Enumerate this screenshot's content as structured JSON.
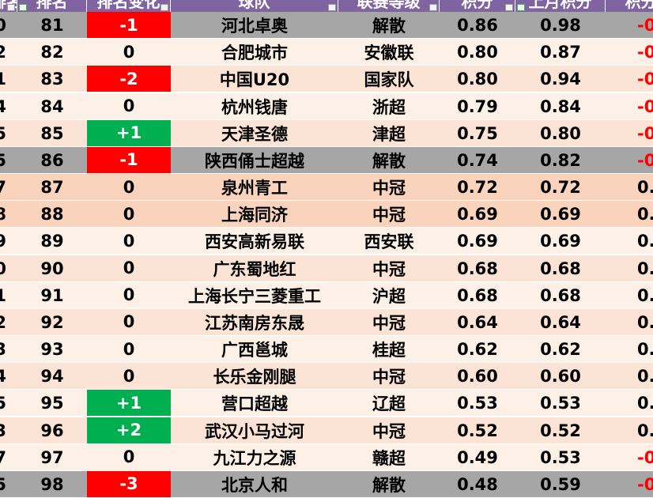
{
  "table": {
    "header": [
      "排名",
      "排名",
      "排名变化",
      "球队",
      "联赛等级",
      "积分",
      "上月积分",
      "积分"
    ],
    "rows": [
      [
        "0",
        "81",
        "-1",
        "河北卓奥",
        "解散",
        "0.86",
        "0.98",
        "-0"
      ],
      [
        "2",
        "82",
        "0",
        "合肥城市",
        "安徽联",
        "0.80",
        "0.87",
        "-0"
      ],
      [
        "1",
        "83",
        "-2",
        "中国U20",
        "国家队",
        "0.80",
        "0.94",
        "-0"
      ],
      [
        "4",
        "84",
        "0",
        "杭州钱唐",
        "浙超",
        "0.79",
        "0.84",
        "-0"
      ],
      [
        "5",
        "85",
        "+1",
        "天津圣德",
        "津超",
        "0.75",
        "0.80",
        "-0"
      ],
      [
        "5",
        "86",
        "-1",
        "陕西俑士超越",
        "解散",
        "0.74",
        "0.82",
        "-0"
      ],
      [
        "7",
        "87",
        "0",
        "泉州青工",
        "中冠",
        "0.72",
        "0.72",
        "0."
      ],
      [
        "8",
        "88",
        "0",
        "上海同济",
        "中冠",
        "0.69",
        "0.69",
        "0."
      ],
      [
        "9",
        "89",
        "0",
        "西安高新易联",
        "西安联",
        "0.69",
        "0.69",
        "0."
      ],
      [
        "0",
        "90",
        "0",
        "广东蜀地红",
        "中冠",
        "0.68",
        "0.68",
        "0."
      ],
      [
        "1",
        "91",
        "0",
        "上海长宁三菱重工",
        "沪超",
        "0.68",
        "0.68",
        "0."
      ],
      [
        "2",
        "92",
        "0",
        "江苏南房东晟",
        "中冠",
        "0.64",
        "0.64",
        "0."
      ],
      [
        "3",
        "93",
        "0",
        "广西邕城",
        "桂超",
        "0.62",
        "0.62",
        "0."
      ],
      [
        "4",
        "94",
        "0",
        "长乐金刚腿",
        "中冠",
        "0.60",
        "0.60",
        "0."
      ],
      [
        "5",
        "95",
        "+1",
        "营口超越",
        "辽超",
        "0.53",
        "0.53",
        "0."
      ],
      [
        "3",
        "96",
        "+2",
        "武汉小马过河",
        "中冠",
        "0.52",
        "0.52",
        "0."
      ],
      [
        "7",
        "97",
        "0",
        "九江力之源",
        "赣超",
        "0.49",
        "0.53",
        "-0"
      ],
      [
        "5",
        "98",
        "-3",
        "北京人和",
        "解散",
        "0.48",
        "0.59",
        "-0"
      ]
    ],
    "row_colors": [
      "#a6a6a6",
      "#fdf0e7",
      "#fbe3d5",
      "#fdf0e7",
      "#fbe3d5",
      "#a6a6a6",
      "#f9d3bb",
      "#f9d3bb",
      "#fdf0e7",
      "#fbe3d5",
      "#fdf0e7",
      "#fbe3d5",
      "#fdf0e7",
      "#fbe3d5",
      "#fdf0e7",
      "#fbe3d5",
      "#fdf0e7",
      "#a6a6a6"
    ]
  }
}
